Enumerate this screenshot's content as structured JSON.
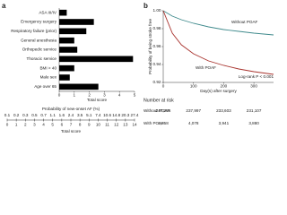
{
  "chart_data": [
    {
      "type": "hbar",
      "label": "a",
      "categories": [
        "ASA III/IV",
        "Emergency surgery",
        "Respiratory failure (prior)",
        "General anesthesia",
        "Orthopedic service",
        "Thoracic service",
        "BMI > 40",
        "Male sex",
        "Age over 65"
      ],
      "values": [
        0.5,
        2.3,
        1.8,
        1.0,
        1.2,
        4.9,
        1.0,
        0.7,
        2.6
      ],
      "color": "#000000",
      "xlim": [
        0,
        5
      ],
      "xticks": [
        0,
        1,
        2,
        3,
        4,
        5
      ],
      "xlabel": "Total score",
      "nomogram": {
        "title": "Probability of new-onset AF (%)",
        "probabilities": [
          0.1,
          0.2,
          0.3,
          0.5,
          0.7,
          1.1,
          1.6,
          2.4,
          3.5,
          5.1,
          7.4,
          10.6,
          14.8,
          20.3,
          27.4
        ],
        "scores": [
          0,
          1,
          2,
          3,
          4,
          5,
          6,
          7,
          8,
          9,
          10,
          11,
          12,
          13,
          14
        ],
        "label": "Total score"
      }
    },
    {
      "type": "line",
      "label": "b",
      "x": [
        0,
        30,
        60,
        100,
        150,
        200,
        250,
        300,
        365
      ],
      "series": [
        {
          "name": "Without POAF",
          "color": "#3f8a8c",
          "values": [
            1.0,
            0.994,
            0.99,
            0.986,
            0.982,
            0.979,
            0.977,
            0.975,
            0.973
          ]
        },
        {
          "name": "With POAF",
          "color": "#a8322d",
          "values": [
            1.0,
            0.975,
            0.962,
            0.952,
            0.944,
            0.939,
            0.935,
            0.932,
            0.929
          ]
        }
      ],
      "xlim": [
        0,
        365
      ],
      "xticks": [
        0,
        100,
        200,
        300
      ],
      "ylim": [
        0.92,
        1.0
      ],
      "yticks": [
        0.92,
        0.94,
        0.96,
        0.98,
        {
          "value": 1.0,
          "label": "1.00"
        }
      ],
      "xlabel": "Day(s) after surgery",
      "ylabel": "Probability of being stroke free",
      "annotation": "Log-rank P < 0.001",
      "risk_table": {
        "title": "Number at risk",
        "rows": [
          {
            "name": "Without POAF",
            "values": [
              "247,286",
              "237,997",
              "233,603",
              "231,107"
            ]
          },
          {
            "name": "With POAF",
            "values": [
              "4,558",
              "4,078",
              "3,941",
              "3,880"
            ]
          }
        ]
      }
    }
  ]
}
